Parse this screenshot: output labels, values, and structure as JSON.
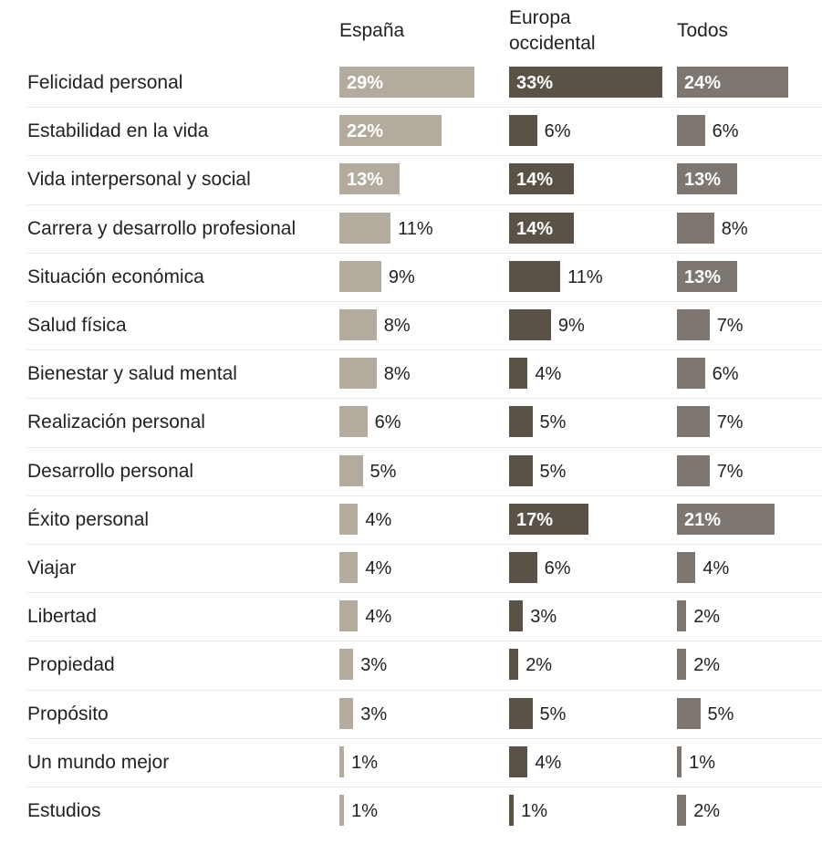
{
  "chart_data": {
    "type": "bar",
    "categories": [
      "Felicidad personal",
      "Estabilidad en la vida",
      "Vida interpersonal y social",
      "Carrera y desarrollo profesional",
      "Situación económica",
      "Salud física",
      "Bienestar y salud mental",
      "Realización personal",
      "Desarrollo personal",
      "Éxito personal",
      "Viajar",
      "Libertad",
      "Propiedad",
      "Propósito",
      "Un mundo mejor",
      "Estudios"
    ],
    "series": [
      {
        "name": "España",
        "color": "#b3ab9e",
        "values": [
          29,
          22,
          13,
          11,
          9,
          8,
          8,
          6,
          5,
          4,
          4,
          4,
          3,
          3,
          1,
          1
        ],
        "value_labels": [
          "29%",
          "22%",
          "13%",
          "11%",
          "9%",
          "8%",
          "8%",
          "6%",
          "5%",
          "4%",
          "4%",
          "4%",
          "3%",
          "3%",
          "1%",
          "1%"
        ]
      },
      {
        "name": "Europa occidental",
        "color": "#5a5247",
        "values": [
          33,
          6,
          14,
          14,
          11,
          9,
          4,
          5,
          5,
          17,
          6,
          3,
          2,
          5,
          4,
          1
        ],
        "value_labels": [
          "33%",
          "6%",
          "14%",
          "14%",
          "11%",
          "9%",
          "4%",
          "5%",
          "5%",
          "17%",
          "6%",
          "3%",
          "2%",
          "5%",
          "4%",
          "1%"
        ]
      },
      {
        "name": "Todos",
        "color": "#7d7671",
        "values": [
          24,
          6,
          13,
          8,
          13,
          7,
          6,
          7,
          7,
          21,
          4,
          2,
          2,
          5,
          1,
          2
        ],
        "value_labels": [
          "24%",
          "6%",
          "13%",
          "8%",
          "13%",
          "7%",
          "6%",
          "7%",
          "7%",
          "21%",
          "4%",
          "2%",
          "2%",
          "5%",
          "1%",
          "2%"
        ]
      }
    ]
  }
}
